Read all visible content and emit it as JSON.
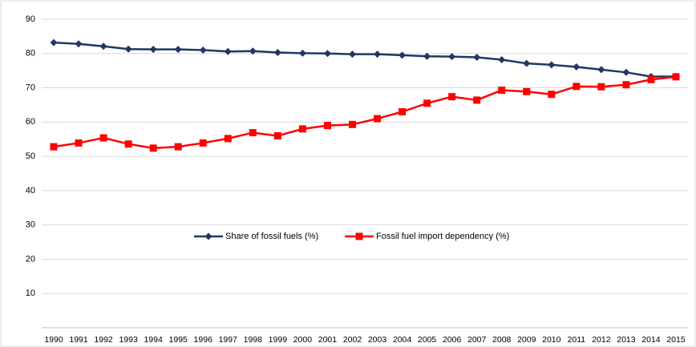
{
  "chart_data": {
    "type": "line",
    "categories": [
      "1990",
      "1991",
      "1992",
      "1993",
      "1994",
      "1995",
      "1996",
      "1997",
      "1998",
      "1999",
      "2000",
      "2001",
      "2002",
      "2003",
      "2004",
      "2005",
      "2006",
      "2007",
      "2008",
      "2009",
      "2010",
      "2011",
      "2012",
      "2013",
      "2014",
      "2015"
    ],
    "series": [
      {
        "name": "Share of fossil fuels (%)",
        "color": "#1f3864",
        "marker": "diamond",
        "values": [
          83.2,
          82.8,
          82.1,
          81.3,
          81.2,
          81.2,
          81.0,
          80.6,
          80.7,
          80.3,
          80.1,
          80.0,
          79.8,
          79.8,
          79.5,
          79.2,
          79.1,
          78.9,
          78.2,
          77.1,
          76.7,
          76.1,
          75.3,
          74.5,
          73.3,
          73.3
        ]
      },
      {
        "name": "Fossil fuel import dependency (%)",
        "color": "#ff0000",
        "marker": "square",
        "values": [
          52.8,
          53.9,
          55.4,
          53.6,
          52.4,
          52.8,
          53.9,
          55.2,
          56.9,
          56.0,
          58.0,
          59.0,
          59.3,
          61.0,
          63.0,
          65.5,
          67.4,
          66.4,
          69.3,
          68.9,
          68.1,
          70.4,
          70.3,
          70.9,
          72.4,
          73.2
        ]
      }
    ],
    "ylim": [
      0,
      90
    ],
    "yticks": [
      10,
      20,
      30,
      40,
      50,
      60,
      70,
      80,
      90
    ],
    "grid": true
  }
}
